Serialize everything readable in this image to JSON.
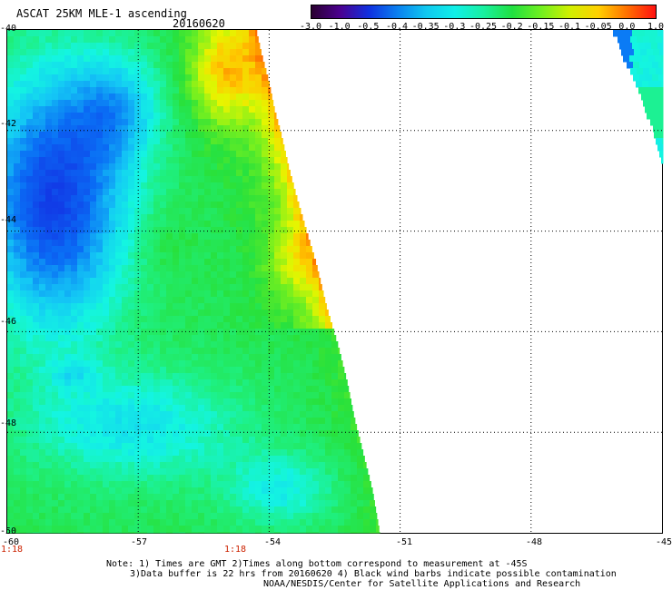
{
  "header": {
    "title": "ASCAT 25KM MLE-1 ascending",
    "date": "20160620"
  },
  "colorbar": {
    "labels": [
      "-3.0",
      "-1.0",
      "-0.5",
      "-0.4",
      "-0.35",
      "-0.3",
      "-0.25",
      "-0.2",
      "-0.15",
      "-0.1",
      "-0.05",
      "0.0",
      "1.0"
    ],
    "colors": [
      "#2a0030",
      "#4b0090",
      "#1030e0",
      "#0a80f0",
      "#10c8f0",
      "#10f0e8",
      "#18f0a0",
      "#20e040",
      "#70f020",
      "#d0f000",
      "#ffd000",
      "#ff7000",
      "#ff1010"
    ]
  },
  "map": {
    "lat_labels": [
      "-40",
      "-42",
      "-44",
      "-46",
      "-48",
      "-50"
    ],
    "lon_labels": [
      "-60",
      "-57",
      "-54",
      "-51",
      "-48",
      "-45"
    ],
    "time_labels": [
      "1:18",
      "1:18"
    ],
    "lat_range": [
      -50,
      -40
    ],
    "lon_range": [
      -60,
      -45
    ]
  },
  "notes": {
    "line1": "Note: 1) Times are GMT 2)Times along bottom correspond to measurement at -45S",
    "line2": "3)Data buffer is 22 hrs from 20160620 4) Black wind barbs indicate possible contamination",
    "line3": "NOAA/NESDIS/Center for Satellite Applications and Research"
  }
}
